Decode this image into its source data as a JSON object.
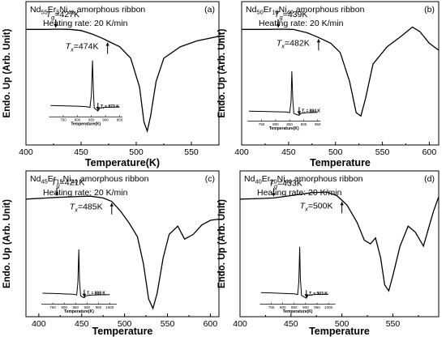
{
  "chart_data": [
    {
      "id": "a",
      "type": "line",
      "letter": "(a)",
      "title_parts": [
        {
          "t": "Nd",
          "s": "base"
        },
        {
          "t": "55",
          "s": "sub"
        },
        {
          "t": "Er",
          "s": "base"
        },
        {
          "t": "5",
          "s": "sub"
        },
        {
          "t": "Ni",
          "s": "base"
        },
        {
          "t": "40",
          "s": "sub"
        },
        {
          "t": " amorphous ribbon",
          "s": "base"
        }
      ],
      "subtitle": "Heating rate: 20 K/min",
      "xlabel": "Temperature(K)",
      "ylabel": "Endo. Up (Arb. Unit)",
      "xlim": [
        400,
        575
      ],
      "ylim": [
        -10,
        2.4
      ],
      "xticks": [
        400,
        450,
        500,
        550
      ],
      "xtick_labels": [
        "400",
        "450",
        "500",
        "550"
      ],
      "curve": [
        [
          400,
          0
        ],
        [
          420,
          0
        ],
        [
          427,
          0.02
        ],
        [
          440,
          0
        ],
        [
          450,
          -0.1
        ],
        [
          460,
          -0.4
        ],
        [
          470,
          -0.8
        ],
        [
          474,
          -1.0
        ],
        [
          485,
          -1.5
        ],
        [
          495,
          -2.5
        ],
        [
          503,
          -5
        ],
        [
          507,
          -8
        ],
        [
          510,
          -8.8
        ],
        [
          513,
          -7.5
        ],
        [
          518,
          -4.5
        ],
        [
          525,
          -2.5
        ],
        [
          540,
          -1.5
        ],
        [
          555,
          -1.0
        ],
        [
          575,
          -0.6
        ]
      ],
      "annotations": [
        {
          "label": "Tg",
          "sub": "g",
          "value": "=427K",
          "x": 427,
          "text_dx": -12,
          "text_dy": -14,
          "dir": "down",
          "arrow_len": 10
        },
        {
          "label": "Tx",
          "sub": "x",
          "value": "=474K",
          "x": 474,
          "text_dx": -66,
          "text_dy": 22,
          "dir": "up",
          "arrow_len": 14
        }
      ],
      "inset": {
        "rect_frac": [
          0.12,
          0.37,
          0.5,
          0.86
        ],
        "xlim": [
          700,
          960
        ],
        "ylim": [
          -1.5,
          7
        ],
        "xticks": [
          750,
          800,
          850,
          900,
          950
        ],
        "xtick_labels": [
          "750",
          "800",
          "850",
          "900",
          "950"
        ],
        "xlabel": "Temperature(K)",
        "annotation": "T_l = 873 K",
        "ann_x": 873,
        "curve": [
          [
            705,
            0.05
          ],
          [
            760,
            0
          ],
          [
            800,
            -0.05
          ],
          [
            830,
            -0.1
          ],
          [
            845,
            -0.2
          ],
          [
            850,
            1.5
          ],
          [
            854,
            6.2
          ],
          [
            857,
            2
          ],
          [
            860,
            -0.3
          ],
          [
            870,
            -0.6
          ],
          [
            873,
            -0.7
          ],
          [
            880,
            -0.3
          ],
          [
            900,
            -0.2
          ],
          [
            950,
            -0.15
          ]
        ]
      }
    },
    {
      "id": "b",
      "type": "line",
      "letter": "(b)",
      "title_parts": [
        {
          "t": "Nd",
          "s": "base"
        },
        {
          "t": "50",
          "s": "sub"
        },
        {
          "t": "Er",
          "s": "base"
        },
        {
          "t": "10",
          "s": "sub"
        },
        {
          "t": "Ni",
          "s": "base"
        },
        {
          "t": "40",
          "s": "sub"
        },
        {
          "t": " amorphous ribbon",
          "s": "base"
        }
      ],
      "subtitle": "Heating rate: 20 K/min",
      "xlabel": "Temperature",
      "ylabel": "Endo. Up (Arb. Unit)",
      "xlim": [
        400,
        610
      ],
      "ylim": [
        -10,
        2.4
      ],
      "xticks": [
        400,
        450,
        500,
        550,
        600
      ],
      "xtick_labels": [
        "400",
        "450",
        "500",
        "550",
        "600"
      ],
      "curve": [
        [
          400,
          0
        ],
        [
          430,
          0
        ],
        [
          439,
          0.02
        ],
        [
          455,
          0
        ],
        [
          470,
          -0.3
        ],
        [
          482,
          -0.7
        ],
        [
          495,
          -1.2
        ],
        [
          505,
          -2.0
        ],
        [
          515,
          -4.5
        ],
        [
          522,
          -7.2
        ],
        [
          527,
          -7.5
        ],
        [
          532,
          -6
        ],
        [
          540,
          -3
        ],
        [
          555,
          -1.5
        ],
        [
          570,
          -0.6
        ],
        [
          582,
          0.2
        ],
        [
          590,
          -0.2
        ],
        [
          600,
          -1.2
        ],
        [
          610,
          -1.8
        ]
      ],
      "annotations": [
        {
          "label": "Tg",
          "sub": "g",
          "value": "=439K",
          "x": 439,
          "text_dx": -5,
          "text_dy": -14,
          "dir": "down",
          "arrow_len": 10
        },
        {
          "label": "Tx",
          "sub": "x",
          "value": "=482K",
          "x": 482,
          "text_dx": -46,
          "text_dy": 22,
          "dir": "up",
          "arrow_len": 14
        }
      ],
      "inset": {
        "rect_frac": [
          0.03,
          0.45,
          0.4,
          0.89
        ],
        "xlim": [
          700,
          960
        ],
        "ylim": [
          -1.5,
          7
        ],
        "xticks": [
          750,
          800,
          850,
          900,
          950
        ],
        "xtick_labels": [
          "750",
          "800",
          "850",
          "900",
          "950"
        ],
        "xlabel": "Temperature(K)",
        "annotation": "T_l = 884 K",
        "ann_x": 884,
        "curve": [
          [
            705,
            0.05
          ],
          [
            760,
            0
          ],
          [
            800,
            -0.05
          ],
          [
            840,
            -0.1
          ],
          [
            850,
            -0.2
          ],
          [
            855,
            1.5
          ],
          [
            858,
            6.2
          ],
          [
            861,
            2
          ],
          [
            865,
            -0.3
          ],
          [
            875,
            -0.5
          ],
          [
            884,
            -0.6
          ],
          [
            890,
            -0.3
          ],
          [
            910,
            -0.2
          ],
          [
            950,
            -0.15
          ]
        ]
      }
    },
    {
      "id": "c",
      "type": "line",
      "letter": "(c)",
      "title_parts": [
        {
          "t": "Nd",
          "s": "base"
        },
        {
          "t": "45",
          "s": "sub"
        },
        {
          "t": "Er",
          "s": "base"
        },
        {
          "t": "15",
          "s": "sub"
        },
        {
          "t": "Ni",
          "s": "base"
        },
        {
          "t": "40",
          "s": "sub"
        },
        {
          "t": " amorphous ribbon",
          "s": "base"
        }
      ],
      "subtitle": "Heating rate: 20 K/min",
      "xlabel": "Temperature",
      "ylabel": "Endo. Up (Arb. Unit)",
      "xlim": [
        385,
        610
      ],
      "ylim": [
        -10,
        2.4
      ],
      "xticks": [
        400,
        450,
        500,
        550,
        600
      ],
      "xtick_labels": [
        "400",
        "450",
        "500",
        "550",
        "600"
      ],
      "curve": [
        [
          385,
          0
        ],
        [
          410,
          0.1
        ],
        [
          421,
          0.15
        ],
        [
          440,
          0.2
        ],
        [
          460,
          0.25
        ],
        [
          475,
          0.1
        ],
        [
          485,
          -0.2
        ],
        [
          495,
          -1.0
        ],
        [
          505,
          -2.0
        ],
        [
          515,
          -3.2
        ],
        [
          522,
          -5.5
        ],
        [
          528,
          -8.5
        ],
        [
          533,
          -9.3
        ],
        [
          538,
          -8
        ],
        [
          545,
          -5
        ],
        [
          552,
          -3
        ],
        [
          562,
          -2.3
        ],
        [
          570,
          -3.4
        ],
        [
          580,
          -3.0
        ],
        [
          590,
          -2.2
        ],
        [
          600,
          -1.8
        ],
        [
          610,
          -1.7
        ]
      ],
      "annotations": [
        {
          "label": "Tg",
          "sub": "g",
          "value": "=421K",
          "x": 421,
          "text_dx": -7,
          "text_dy": -14,
          "dir": "down",
          "arrow_len": 10
        },
        {
          "label": "Tx",
          "sub": "x",
          "value": "=485K",
          "x": 485,
          "text_dx": -54,
          "text_dy": 22,
          "dir": "up",
          "arrow_len": 14
        }
      ],
      "inset": {
        "rect_frac": [
          0.08,
          0.5,
          0.47,
          0.97
        ],
        "xlim": [
          700,
          1030
        ],
        "ylim": [
          -1.5,
          7
        ],
        "xticks": [
          750,
          800,
          850,
          900,
          950,
          1000
        ],
        "xtick_labels": [
          "750",
          "800",
          "850",
          "900",
          "950",
          "1000"
        ],
        "xlabel": "Temperature(K)",
        "annotation": "T_l = 888 K",
        "ann_x": 888,
        "curve": [
          [
            705,
            0.05
          ],
          [
            760,
            0
          ],
          [
            800,
            -0.05
          ],
          [
            840,
            -0.1
          ],
          [
            855,
            -0.2
          ],
          [
            860,
            1.5
          ],
          [
            864,
            6.2
          ],
          [
            867,
            2
          ],
          [
            872,
            -0.3
          ],
          [
            880,
            -0.5
          ],
          [
            888,
            -0.6
          ],
          [
            895,
            -0.3
          ],
          [
            920,
            -0.2
          ],
          [
            1000,
            -0.15
          ]
        ]
      }
    },
    {
      "id": "d",
      "type": "line",
      "letter": "(d)",
      "title_parts": [
        {
          "t": "Nd",
          "s": "base"
        },
        {
          "t": "40",
          "s": "sub"
        },
        {
          "t": "Er",
          "s": "base"
        },
        {
          "t": "20",
          "s": "sub"
        },
        {
          "t": "Ni",
          "s": "base"
        },
        {
          "t": "40",
          "s": "sub"
        },
        {
          "t": " amorphous ribbon",
          "s": "base"
        }
      ],
      "subtitle": "Heating rate: 20 K/min",
      "xlabel": "Temperature",
      "ylabel": "Endo. Up (Arb. Unit)",
      "xlim": [
        400,
        595
      ],
      "ylim": [
        -10,
        2.4
      ],
      "xticks": [
        400,
        450,
        500,
        550
      ],
      "xtick_labels": [
        "400",
        "450",
        "500",
        "550"
      ],
      "curve": [
        [
          400,
          0
        ],
        [
          420,
          0.05
        ],
        [
          433,
          0.1
        ],
        [
          450,
          0.3
        ],
        [
          470,
          0.55
        ],
        [
          485,
          0.6
        ],
        [
          495,
          0.3
        ],
        [
          505,
          -0.5
        ],
        [
          515,
          -2.0
        ],
        [
          522,
          -3.5
        ],
        [
          528,
          -3.8
        ],
        [
          533,
          -3.3
        ],
        [
          538,
          -5
        ],
        [
          542,
          -7.3
        ],
        [
          546,
          -7.8
        ],
        [
          550,
          -6.5
        ],
        [
          557,
          -4
        ],
        [
          565,
          -2.3
        ],
        [
          572,
          -2.8
        ],
        [
          580,
          -4.0
        ],
        [
          585,
          -2.5
        ],
        [
          590,
          -1.0
        ],
        [
          595,
          0.2
        ]
      ],
      "annotations": [
        {
          "label": "Tg",
          "sub": "g",
          "value": "=433K",
          "x": 433,
          "text_dx": -6,
          "text_dy": -14,
          "dir": "down",
          "arrow_len": 10
        },
        {
          "label": "Tx",
          "sub": "x",
          "value": "=500K",
          "x": 500,
          "text_dx": -58,
          "text_dy": 22,
          "dir": "up",
          "arrow_len": 14
        }
      ],
      "inset": {
        "rect_frac": [
          0.1,
          0.48,
          0.48,
          0.97
        ],
        "xlim": [
          700,
          1030
        ],
        "ylim": [
          -1.5,
          7
        ],
        "xticks": [
          750,
          800,
          850,
          900,
          950,
          1000
        ],
        "xtick_labels": [
          "750",
          "800",
          "850",
          "900",
          "950",
          "1000"
        ],
        "xlabel": "Temperature(K)",
        "annotation": "T_l = 903 K",
        "ann_x": 903,
        "curve": [
          [
            705,
            0.05
          ],
          [
            760,
            0
          ],
          [
            800,
            -0.05
          ],
          [
            850,
            -0.1
          ],
          [
            865,
            -0.2
          ],
          [
            870,
            1.5
          ],
          [
            874,
            6.2
          ],
          [
            877,
            2
          ],
          [
            882,
            -0.3
          ],
          [
            892,
            -0.5
          ],
          [
            903,
            -0.7
          ],
          [
            910,
            -0.3
          ],
          [
            940,
            -0.2
          ],
          [
            1000,
            -0.15
          ]
        ]
      }
    }
  ]
}
